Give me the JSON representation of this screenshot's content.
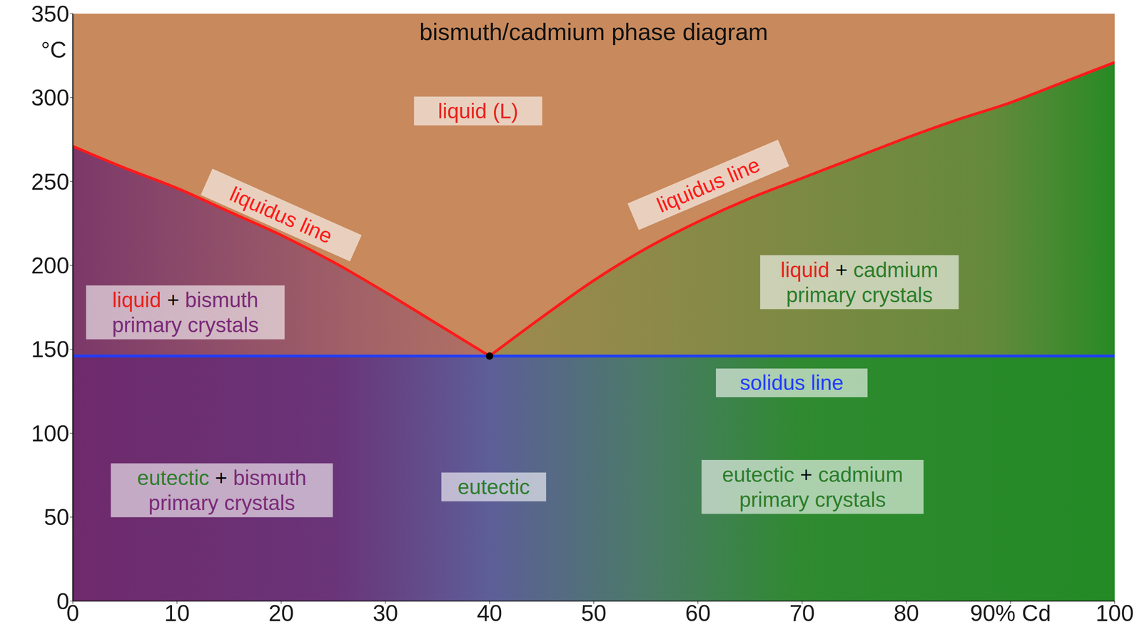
{
  "chart_data": {
    "type": "line",
    "title": "bismuth/cadmium phase diagram",
    "y_label": "°C",
    "xlim": [
      0,
      100
    ],
    "xticks": [
      0,
      10,
      20,
      30,
      40,
      50,
      60,
      70,
      80,
      {
        "value": 90,
        "label": "90% Cd"
      },
      100
    ],
    "ylim": [
      0,
      350
    ],
    "yticks": [
      0,
      50,
      100,
      150,
      200,
      250,
      300,
      350
    ],
    "grid": false,
    "series": [
      {
        "name": "liquidus line",
        "color": "#ff1a1a",
        "x": [
          0,
          5,
          10,
          15,
          20,
          25,
          30,
          35,
          40
        ],
        "values": [
          271,
          258,
          246,
          232,
          218,
          202,
          184,
          165,
          146
        ],
        "label_at": {
          "x": 20,
          "y": 230
        }
      },
      {
        "name": "liquidus line",
        "color": "#ff1a1a",
        "x": [
          40,
          45,
          50,
          55,
          60,
          65,
          70,
          75,
          80,
          85,
          90,
          95,
          100
        ],
        "values": [
          146,
          169,
          191,
          210,
          226,
          240,
          252,
          264,
          276,
          287,
          297,
          309,
          321
        ],
        "label_at": {
          "x": 61,
          "y": 248
        }
      },
      {
        "name": "solidus line",
        "color": "#1f3cff",
        "x": [
          0,
          100
        ],
        "values": [
          146,
          146
        ],
        "label_at": {
          "x": 69,
          "y": 130
        }
      }
    ],
    "annotations": [
      {
        "text": [
          "liquid (L)"
        ],
        "x": 38.9,
        "y": 292,
        "color": "#e8211d"
      },
      {
        "text": [
          "liquid + bismuth",
          "primary crystals"
        ],
        "x": 10.8,
        "y": 172,
        "color": "#7a2a78"
      },
      {
        "text": [
          "liquid + cadmium",
          "primary crystals"
        ],
        "x": 75.5,
        "y": 190,
        "color": "#2b7d2b"
      },
      {
        "text": [
          "eutectic + bismuth",
          "primary crystals"
        ],
        "x": 14.3,
        "y": 66,
        "color": "#7a2a78"
      },
      {
        "text": [
          "eutectic"
        ],
        "x": 40.4,
        "y": 68,
        "color": "#2b7d2b"
      },
      {
        "text": [
          "eutectic + cadmium",
          "primary crystals"
        ],
        "x": 71,
        "y": 68,
        "color": "#2b7d2b"
      }
    ]
  }
}
